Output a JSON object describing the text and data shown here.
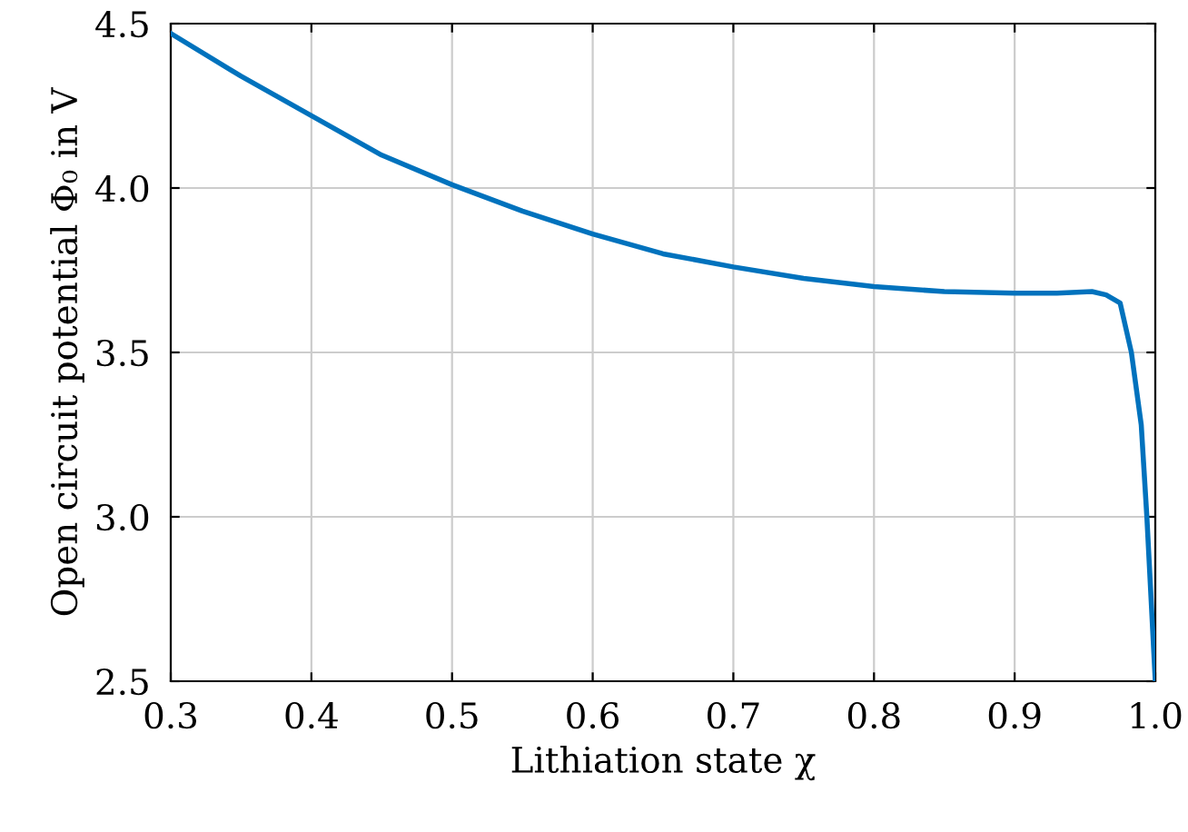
{
  "chart_data": {
    "type": "line",
    "xlabel": "Lithiation state χ",
    "ylabel": "Open circuit potential Φ₀ in V",
    "series": [
      {
        "color": "#0072bd",
        "x": [
          0.3,
          0.35,
          0.4,
          0.45,
          0.5,
          0.55,
          0.6,
          0.65,
          0.7,
          0.75,
          0.8,
          0.85,
          0.9,
          0.93,
          0.955,
          0.965,
          0.975,
          0.983,
          0.99,
          0.994,
          1.0
        ],
        "values": [
          4.47,
          4.34,
          4.22,
          4.1,
          4.01,
          3.93,
          3.86,
          3.8,
          3.76,
          3.725,
          3.7,
          3.685,
          3.68,
          3.68,
          3.685,
          3.675,
          3.65,
          3.5,
          3.28,
          3.0,
          2.5
        ]
      }
    ],
    "xlim": [
      0.3,
      1.0
    ],
    "xticks": [
      0.3,
      0.4,
      0.5,
      0.6,
      0.7,
      0.8,
      0.9,
      {
        "value": 1,
        "label": "1.0"
      }
    ],
    "ylim": [
      2.5,
      4.5
    ],
    "yticks": [
      2.5,
      {
        "value": 3,
        "label": "3.0"
      },
      3.5,
      {
        "value": 4,
        "label": "4.0"
      },
      4.5
    ],
    "grid": true,
    "marker": "none",
    "line_style": "solid"
  }
}
